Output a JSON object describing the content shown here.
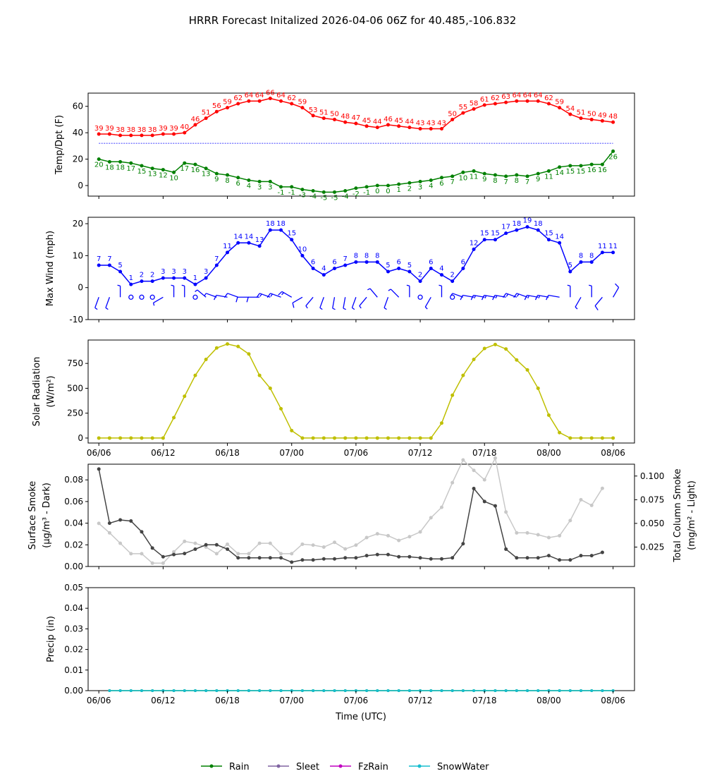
{
  "title": "HRRR Forecast Initalized 2026-04-06 06Z for 40.485,-106.832",
  "x_tick_labels": [
    "06/06",
    "06/12",
    "06/18",
    "07/00",
    "07/06",
    "07/12",
    "07/18",
    "08/00",
    "08/06"
  ],
  "xlabel": "Time (UTC)",
  "legend": [
    {
      "label": "Rain",
      "color": "#008000"
    },
    {
      "label": "Sleet",
      "color": "#8064a2"
    },
    {
      "label": "FzRain",
      "color": "#c000c0"
    },
    {
      "label": "SnowWater",
      "color": "#17becf"
    }
  ],
  "chart_data": [
    {
      "type": "line",
      "name": "temp-dewpoint",
      "ylabel": "Temp/Dpt (F)",
      "ylim": [
        -8,
        70
      ],
      "yticks": [
        0,
        20,
        40,
        60
      ],
      "x_hours": "0..48 step 1, hours from 06/06 06Z",
      "freezing_line": 32,
      "series": [
        {
          "name": "Temperature",
          "color": "#ff0000",
          "values": [
            39,
            39,
            38,
            38,
            38,
            38,
            39,
            39,
            40,
            46,
            51,
            56,
            59,
            62,
            64,
            64,
            66,
            64,
            62,
            59,
            53,
            51,
            50,
            48,
            47,
            45,
            44,
            46,
            45,
            44,
            43,
            43,
            43,
            50,
            55,
            58,
            61,
            62,
            63,
            64,
            64,
            64,
            62,
            59,
            54,
            51,
            50,
            49,
            48
          ]
        },
        {
          "name": "Dewpoint",
          "color": "#008000",
          "values": [
            20,
            18,
            18,
            17,
            15,
            13,
            12,
            10,
            17,
            16,
            13,
            9,
            8,
            6,
            4,
            3,
            3,
            -1,
            -1,
            -3,
            -4,
            -5,
            -5,
            -4,
            -2,
            -1,
            0,
            0,
            1,
            2,
            3,
            4,
            6,
            7,
            10,
            11,
            9,
            8,
            7,
            8,
            7,
            9,
            11,
            14,
            15,
            15,
            16,
            16,
            26
          ]
        }
      ]
    },
    {
      "type": "line",
      "name": "max-wind",
      "ylabel": "Max Wind (mph)",
      "ylim": [
        -10,
        22
      ],
      "yticks": [
        -10,
        0,
        10,
        20
      ],
      "series": [
        {
          "name": "Max Wind",
          "color": "#0000ff",
          "values": [
            7,
            7,
            5,
            1,
            2,
            2,
            3,
            3,
            3,
            1,
            3,
            7,
            11,
            14,
            14,
            13,
            18,
            18,
            15,
            10,
            6,
            4,
            6,
            7,
            8,
            8,
            8,
            5,
            6,
            5,
            2,
            6,
            4,
            2,
            6,
            12,
            15,
            15,
            17,
            18,
            19,
            18,
            15,
            14,
            5,
            8,
            8,
            11,
            11
          ]
        }
      ],
      "wind_dir_deg": [
        200,
        200,
        0,
        0,
        0,
        0,
        240,
        0,
        0,
        0,
        310,
        290,
        280,
        290,
        270,
        270,
        290,
        290,
        300,
        240,
        220,
        200,
        190,
        190,
        200,
        220,
        320,
        200,
        315,
        0,
        0,
        210,
        0,
        0,
        290,
        280,
        280,
        280,
        280,
        290,
        290,
        280,
        280,
        280,
        0,
        210,
        0,
        220,
        30
      ]
    },
    {
      "type": "line",
      "name": "solar-radiation",
      "ylabel": "Solar Radiation",
      "ylabel2": "(W/m²)",
      "ylim": [
        -50,
        985
      ],
      "yticks": [
        0,
        250,
        500,
        750
      ],
      "series": [
        {
          "name": "Solar Radiation",
          "color": "#bfbf00",
          "values": [
            0,
            0,
            0,
            0,
            0,
            0,
            0,
            205,
            420,
            630,
            790,
            905,
            945,
            920,
            845,
            630,
            500,
            295,
            75,
            0,
            0,
            0,
            0,
            0,
            0,
            0,
            0,
            0,
            0,
            0,
            0,
            0,
            150,
            430,
            630,
            790,
            900,
            940,
            895,
            785,
            685,
            500,
            230,
            55,
            0,
            0,
            0,
            0,
            0
          ]
        }
      ]
    },
    {
      "type": "line",
      "name": "smoke",
      "ylabel": "Surface Smoke",
      "ylabel2": "(μg/m³ - Dark)",
      "ylabel_right": "Total Column Smoke",
      "ylabel_right2": "(mg/m² - Light)",
      "ylim": [
        0,
        0.0945
      ],
      "yticks": [
        "0.00",
        "0.02",
        "0.04",
        "0.06",
        "0.08"
      ],
      "ylim_right": [
        0.0045,
        0.1125
      ],
      "yticks_right": [
        "0.025",
        "0.050",
        "0.075",
        "0.100"
      ],
      "series": [
        {
          "name": "Surface Smoke",
          "color": "#444444",
          "axis": "left",
          "values": [
            0.09,
            0.04,
            0.043,
            0.042,
            0.032,
            0.017,
            0.009,
            0.011,
            0.012,
            0.016,
            0.02,
            0.02,
            0.016,
            0.008,
            0.008,
            0.008,
            0.008,
            0.008,
            0.004,
            0.006,
            0.006,
            0.007,
            0.007,
            0.008,
            0.008,
            0.01,
            0.011,
            0.011,
            0.009,
            0.009,
            0.008,
            0.007,
            0.007,
            0.008,
            0.021,
            0.072,
            0.06,
            0.056,
            0.016,
            0.008,
            0.008,
            0.008,
            0.01,
            0.006,
            0.006,
            0.01,
            0.01,
            0.013
          ]
        },
        {
          "name": "Total Column Smoke",
          "color": "#c8c8c8",
          "axis": "right",
          "values": [
            0.05,
            0.04,
            0.029,
            0.018,
            0.018,
            0.008,
            0.008,
            0.02,
            0.031,
            0.029,
            0.025,
            0.018,
            0.028,
            0.018,
            0.018,
            0.029,
            0.029,
            0.018,
            0.018,
            0.028,
            0.027,
            0.025,
            0.03,
            0.023,
            0.027,
            0.035,
            0.039,
            0.037,
            0.032,
            0.036,
            0.041,
            0.056,
            0.067,
            0.093,
            0.117,
            0.106,
            0.096,
            0.119,
            0.062,
            0.04,
            0.04,
            0.038,
            0.035,
            0.037,
            0.053,
            0.075,
            0.069,
            0.087
          ]
        }
      ]
    },
    {
      "type": "line",
      "name": "precip",
      "ylabel": "Precip (in)",
      "ylim": [
        0,
        0.05
      ],
      "yticks": [
        "0.00",
        "0.01",
        "0.02",
        "0.03",
        "0.04",
        "0.05"
      ],
      "series": [
        {
          "name": "Rain",
          "color": "#008000",
          "values": [
            0,
            0,
            0,
            0,
            0,
            0,
            0,
            0,
            0,
            0,
            0,
            0,
            0,
            0,
            0,
            0,
            0,
            0,
            0,
            0,
            0,
            0,
            0,
            0,
            0,
            0,
            0,
            0,
            0,
            0,
            0,
            0,
            0,
            0,
            0,
            0,
            0,
            0,
            0,
            0,
            0,
            0,
            0,
            0,
            0,
            0,
            0,
            0
          ]
        },
        {
          "name": "SnowWater",
          "color": "#17becf",
          "values": [
            0,
            0,
            0,
            0,
            0,
            0,
            0,
            0,
            0,
            0,
            0,
            0,
            0,
            0,
            0,
            0,
            0,
            0,
            0,
            0,
            0,
            0,
            0,
            0,
            0,
            0,
            0,
            0,
            0,
            0,
            0,
            0,
            0,
            0,
            0,
            0,
            0,
            0,
            0,
            0,
            0,
            0,
            0,
            0,
            0,
            0,
            0,
            0
          ]
        }
      ]
    }
  ]
}
